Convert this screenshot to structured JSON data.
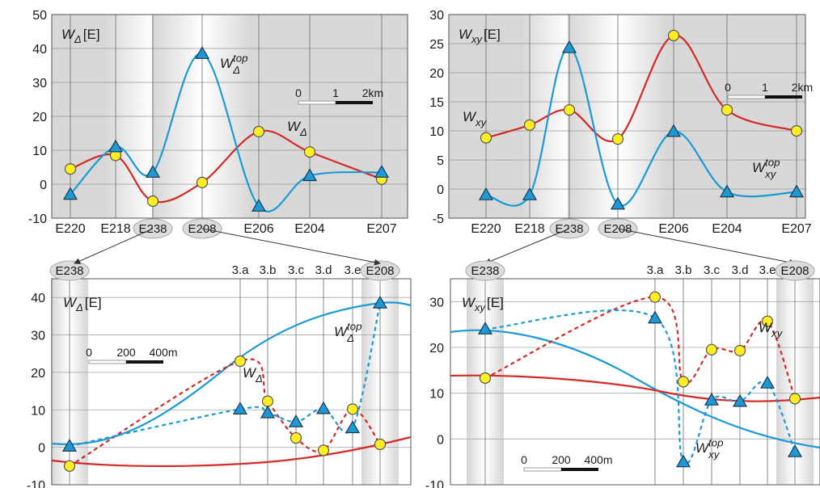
{
  "chart_data": [
    {
      "id": "top-left",
      "type": "line",
      "ylim": [
        -10,
        50
      ],
      "yticks": [
        -10,
        0,
        10,
        20,
        30,
        40,
        50
      ],
      "categories": [
        "E220",
        "E218",
        "E238",
        "E208",
        "E206",
        "E204",
        "E207"
      ],
      "highlighted_categories": [
        "E238",
        "E208"
      ],
      "ylabel_main": "W",
      "ylabel_sub": "Δ",
      "ylabel_unit": "[E]",
      "scalebar": {
        "labels": [
          "0",
          "1",
          "2km"
        ]
      },
      "series": [
        {
          "name_main": "W",
          "name_sub": "Δ",
          "name_sup": "",
          "color": "#d42a26",
          "marker": "circle",
          "values": [
            4.5,
            8.5,
            -5,
            0.5,
            15.5,
            9.5,
            1.5
          ]
        },
        {
          "name_main": "W",
          "name_sub": "Δ",
          "name_sup": "top",
          "color": "#1b9ad6",
          "marker": "triangle",
          "values": [
            -3,
            11,
            3.5,
            38.5,
            -6.5,
            2.5,
            3.5
          ]
        }
      ]
    },
    {
      "id": "top-right",
      "type": "line",
      "ylim": [
        -5,
        30
      ],
      "yticks": [
        -5,
        0,
        5,
        10,
        15,
        20,
        25,
        30
      ],
      "categories": [
        "E220",
        "E218",
        "E238",
        "E208",
        "E206",
        "E204",
        "E207"
      ],
      "highlighted_categories": [
        "E238",
        "E208"
      ],
      "ylabel_main": "W",
      "ylabel_sub": "xy",
      "ylabel_unit": "[E]",
      "scalebar": {
        "labels": [
          "0",
          "1",
          "2km"
        ]
      },
      "series": [
        {
          "name_main": "W",
          "name_sub": "xy",
          "name_sup": "",
          "color": "#d42a26",
          "marker": "circle",
          "values": [
            8.8,
            11,
            13.6,
            8.6,
            26.4,
            13.6,
            10
          ]
        },
        {
          "name_main": "W",
          "name_sub": "xy",
          "name_sup": "top",
          "color": "#1b9ad6",
          "marker": "triangle",
          "values": [
            -1,
            -1,
            24.3,
            -2.6,
            9.9,
            -0.5,
            -0.5
          ]
        }
      ]
    },
    {
      "id": "bottom-left",
      "type": "line",
      "ylim": [
        -10,
        45
      ],
      "yticks": [
        -10,
        0,
        10,
        20,
        30,
        40
      ],
      "endpoint_labels": [
        "E238",
        "E208"
      ],
      "profile_labels": [
        "3.a",
        "3.b",
        "3.c",
        "3.d",
        "3.e"
      ],
      "ylabel_main": "W",
      "ylabel_sub": "Δ",
      "ylabel_unit": "[E]",
      "scalebar": {
        "labels": [
          "0",
          "200",
          "400m"
        ]
      },
      "series": [
        {
          "name_main": "W",
          "name_sub": "Δ",
          "name_sup": "",
          "color": "#d42a26",
          "marker": "circle",
          "values": [
            -5,
            23,
            12.3,
            2.5,
            -0.8,
            10.2,
            0.8
          ]
        },
        {
          "name_main": "W",
          "name_sub": "Δ",
          "name_sup": "top",
          "color": "#1b9ad6",
          "marker": "triangle",
          "values": [
            0.3,
            10.2,
            9.2,
            6.8,
            10.3,
            5.2,
            38.5
          ]
        }
      ]
    },
    {
      "id": "bottom-right",
      "type": "line",
      "ylim": [
        -10,
        35
      ],
      "yticks": [
        -10,
        0,
        10,
        20,
        30
      ],
      "endpoint_labels": [
        "E238",
        "E208"
      ],
      "profile_labels": [
        "3.a",
        "3.b",
        "3.c",
        "3.d",
        "3.e"
      ],
      "ylabel_main": "W",
      "ylabel_sub": "xy",
      "ylabel_unit": "[E]",
      "scalebar": {
        "labels": [
          "0",
          "200",
          "400m"
        ]
      },
      "series": [
        {
          "name_main": "W",
          "name_sub": "xy",
          "name_sup": "",
          "color": "#d42a26",
          "marker": "circle",
          "values": [
            13.3,
            31,
            12.5,
            19.5,
            19.3,
            25.7,
            8.8
          ]
        },
        {
          "name_main": "W",
          "name_sub": "xy",
          "name_sup": "top",
          "color": "#1b9ad6",
          "marker": "triangle",
          "values": [
            24,
            26.4,
            -5,
            8.5,
            8.2,
            12.2,
            -2.8
          ]
        }
      ]
    }
  ]
}
